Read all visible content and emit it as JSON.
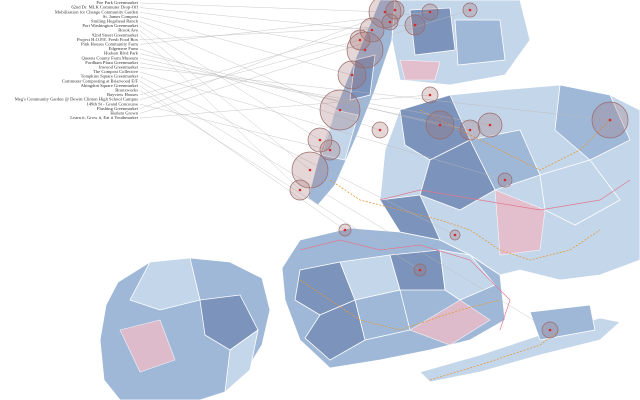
{
  "labels": [
    "Poe Park Greenmarket",
    "62nd Dr. MLK Commuter Drop-Off",
    "Mobilization for Change Community Garden",
    "St. James Compost",
    "Smiling Hogshead Ranch",
    "Port Washington Greenmarket",
    "Brook Ave",
    "92nd Street Greenmarket",
    "Project H.O.P.E. Fresh Food Box",
    "Pink Houses Community Farm",
    "Edgemere Farm",
    "Hudson Blvd Park",
    "Queens County Farm Museum",
    "Fordham Plaza Greenmarket",
    "Inwood Greenmarket",
    "The Compost Collective",
    "Tompkins Square Greenmarket",
    "Commuter Composting at Briarwood E/F",
    "Abingdon Square Greenmarket",
    "Bronxworks",
    "Bayview Houses",
    "Meg's Community Garden @ Dewitt Clinton High School Campus",
    "149th St - Grand Concourse",
    "Flushing Greenmarket",
    "Harlem Grown",
    "Learn it, Grow it, Eat it Youthmarket"
  ]
}
